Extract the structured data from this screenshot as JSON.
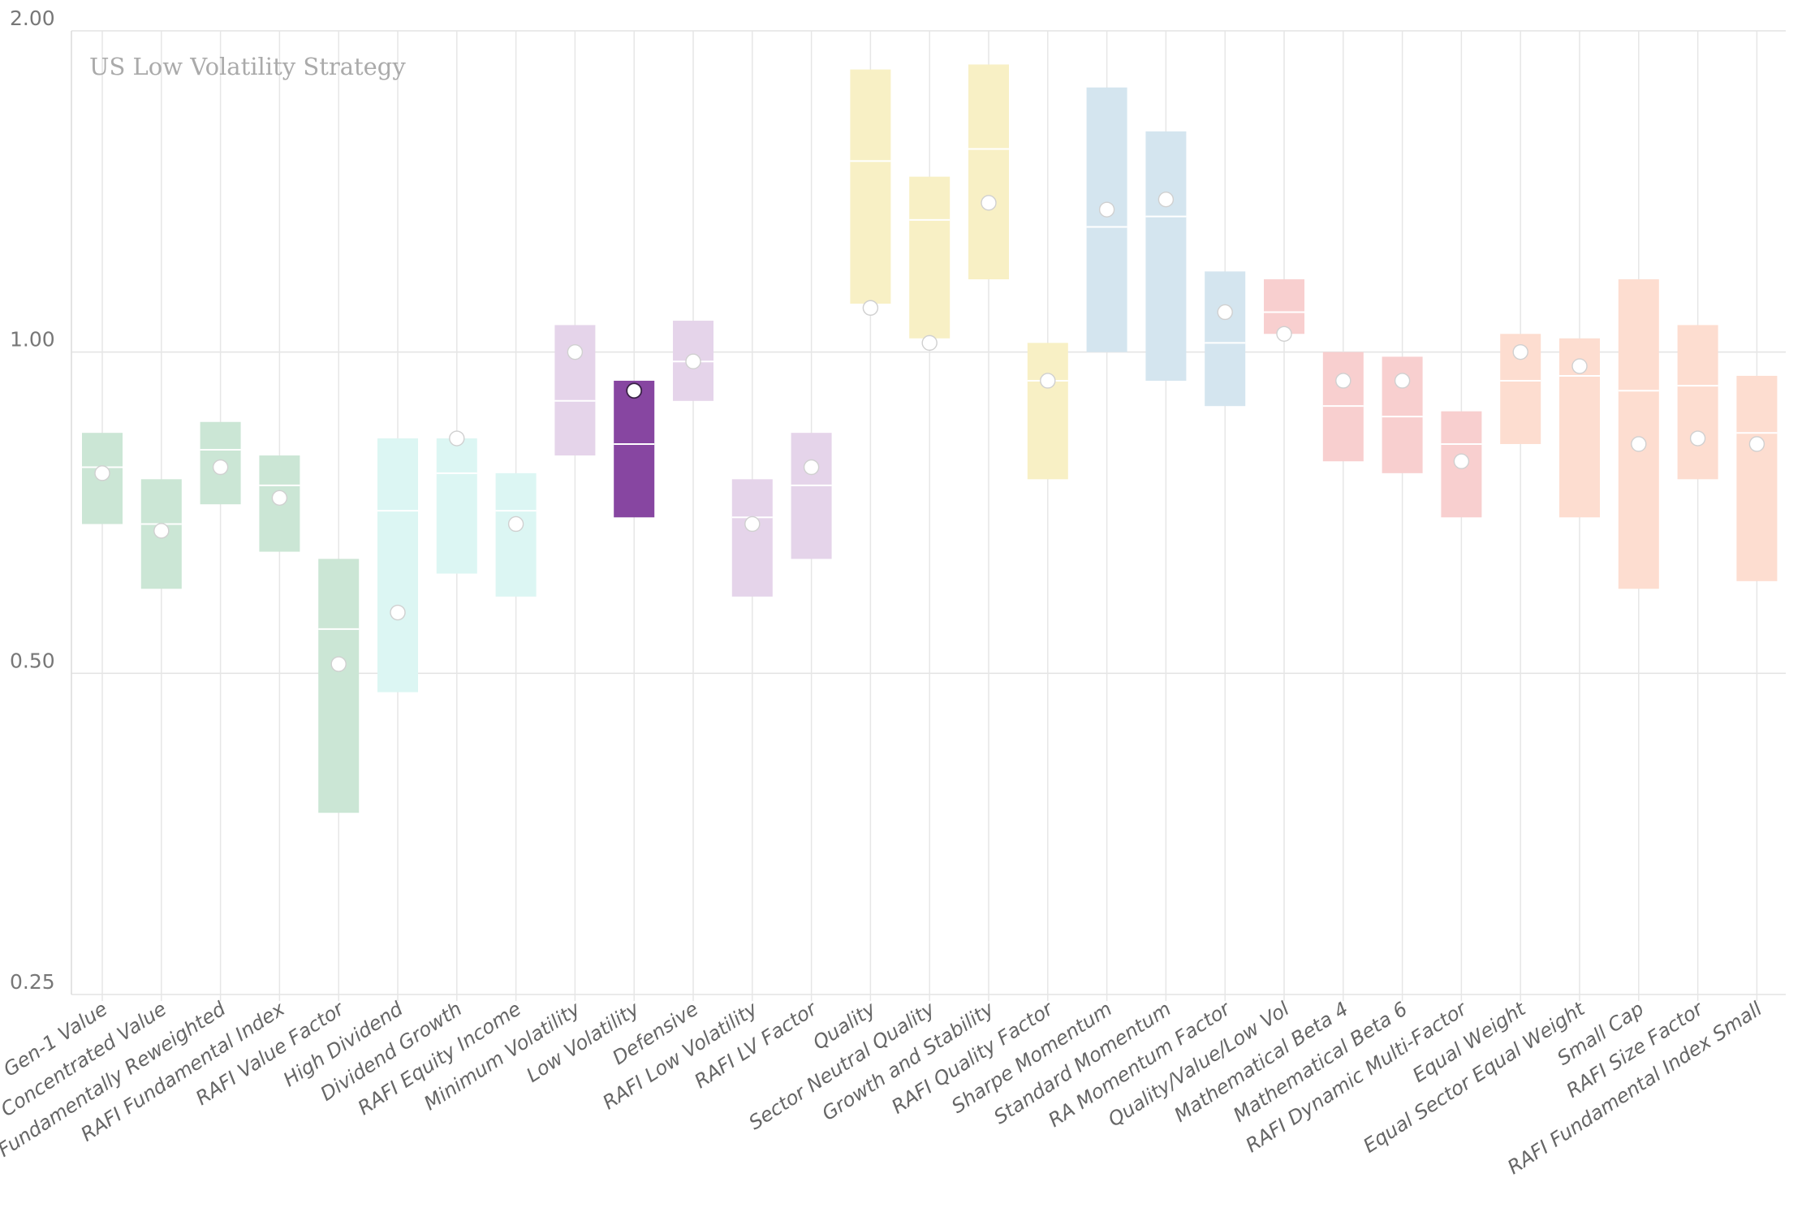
{
  "chart_data": {
    "type": "range-bar",
    "title": "US Low Volatility Strategy",
    "y_scale": "log",
    "ylim": [
      0.25,
      2.0
    ],
    "y_ticks": [
      {
        "value": 0.25,
        "label": "0.25"
      },
      {
        "value": 0.5,
        "label": "0.50"
      },
      {
        "value": 1.0,
        "label": "1.00"
      },
      {
        "value": 2.0,
        "label": "2.00"
      }
    ],
    "grid": true,
    "highlight": "Low Volatility",
    "groups": [
      {
        "color": "#cbe6d5",
        "highlight_color": "#8e4aa3"
      },
      {
        "color": "#dcf6f3"
      },
      {
        "color": "#e5d4ea"
      },
      {
        "color": "#f8f0c5"
      },
      {
        "color": "#d4e5ef"
      },
      {
        "color": "#f8cfcf"
      },
      {
        "color": "#fdddd0"
      }
    ],
    "highlight_color": "#8746a1",
    "items": [
      {
        "label": "Gen-1 Value",
        "group": 0,
        "low": 0.69,
        "high": 0.84,
        "mid": 0.78,
        "point": 0.77
      },
      {
        "label": "Concentrated Value",
        "group": 0,
        "low": 0.6,
        "high": 0.76,
        "mid": 0.69,
        "point": 0.68
      },
      {
        "label": "Fundamentally Reweighted",
        "group": 0,
        "low": 0.72,
        "high": 0.86,
        "mid": 0.81,
        "point": 0.78
      },
      {
        "label": "RAFI Fundamental Index",
        "group": 0,
        "low": 0.65,
        "high": 0.8,
        "mid": 0.75,
        "point": 0.73
      },
      {
        "label": "RAFI Value Factor",
        "group": 0,
        "low": 0.37,
        "high": 0.64,
        "mid": 0.55,
        "point": 0.51
      },
      {
        "label": "High Dividend",
        "group": 1,
        "low": 0.48,
        "high": 0.83,
        "mid": 0.71,
        "point": 0.57
      },
      {
        "label": "Dividend Growth",
        "group": 1,
        "low": 0.62,
        "high": 0.83,
        "mid": 0.77,
        "point": 0.83
      },
      {
        "label": "RAFI Equity Income",
        "group": 1,
        "low": 0.59,
        "high": 0.77,
        "mid": 0.71,
        "point": 0.69
      },
      {
        "label": "Minimum Volatility",
        "group": 2,
        "low": 0.8,
        "high": 1.06,
        "mid": 0.9,
        "point": 1.0
      },
      {
        "label": "Low Volatility",
        "group": 2,
        "low": 0.7,
        "high": 0.94,
        "mid": 0.82,
        "point": 0.92,
        "highlight": true
      },
      {
        "label": "Defensive",
        "group": 2,
        "low": 0.9,
        "high": 1.07,
        "mid": 0.98,
        "point": 0.98
      },
      {
        "label": "RAFI Low Volatility",
        "group": 2,
        "low": 0.59,
        "high": 0.76,
        "mid": 0.7,
        "point": 0.69
      },
      {
        "label": "RAFI LV Factor",
        "group": 2,
        "low": 0.64,
        "high": 0.84,
        "mid": 0.75,
        "point": 0.78
      },
      {
        "label": "Quality",
        "group": 3,
        "low": 1.11,
        "high": 1.84,
        "mid": 1.51,
        "point": 1.1
      },
      {
        "label": "Sector Neutral Quality",
        "group": 3,
        "low": 1.03,
        "high": 1.46,
        "mid": 1.33,
        "point": 1.02
      },
      {
        "label": "Growth and Stability",
        "group": 3,
        "low": 1.17,
        "high": 1.86,
        "mid": 1.55,
        "point": 1.38
      },
      {
        "label": "RAFI Quality Factor",
        "group": 3,
        "low": 0.76,
        "high": 1.02,
        "mid": 0.94,
        "point": 0.94
      },
      {
        "label": "Sharpe Momentum",
        "group": 4,
        "low": 1.0,
        "high": 1.77,
        "mid": 1.31,
        "point": 1.36
      },
      {
        "label": "Standard Momentum",
        "group": 4,
        "low": 0.94,
        "high": 1.61,
        "mid": 1.34,
        "point": 1.39
      },
      {
        "label": "RA Momentum Factor",
        "group": 4,
        "low": 0.89,
        "high": 1.19,
        "mid": 1.02,
        "point": 1.09
      },
      {
        "label": "Quality/Value/Low Vol",
        "group": 5,
        "low": 1.04,
        "high": 1.17,
        "mid": 1.09,
        "point": 1.04
      },
      {
        "label": "Mathematical Beta 4",
        "group": 5,
        "low": 0.79,
        "high": 1.0,
        "mid": 0.89,
        "point": 0.94
      },
      {
        "label": "Mathematical Beta 6",
        "group": 5,
        "low": 0.77,
        "high": 0.99,
        "mid": 0.87,
        "point": 0.94
      },
      {
        "label": "RAFI Dynamic Multi-Factor",
        "group": 5,
        "low": 0.7,
        "high": 0.88,
        "mid": 0.82,
        "point": 0.79
      },
      {
        "label": "Equal Weight",
        "group": 6,
        "low": 0.82,
        "high": 1.04,
        "mid": 0.94,
        "point": 1.0
      },
      {
        "label": "Equal Sector Equal Weight",
        "group": 6,
        "low": 0.7,
        "high": 1.03,
        "mid": 0.95,
        "point": 0.97
      },
      {
        "label": "Small Cap",
        "group": 6,
        "low": 0.6,
        "high": 1.17,
        "mid": 0.92,
        "point": 0.82
      },
      {
        "label": "RAFI Size Factor",
        "group": 6,
        "low": 0.76,
        "high": 1.06,
        "mid": 0.93,
        "point": 0.83
      },
      {
        "label": "RAFI Fundamental Index Small",
        "group": 6,
        "low": 0.61,
        "high": 0.95,
        "mid": 0.84,
        "point": 0.82
      }
    ]
  }
}
